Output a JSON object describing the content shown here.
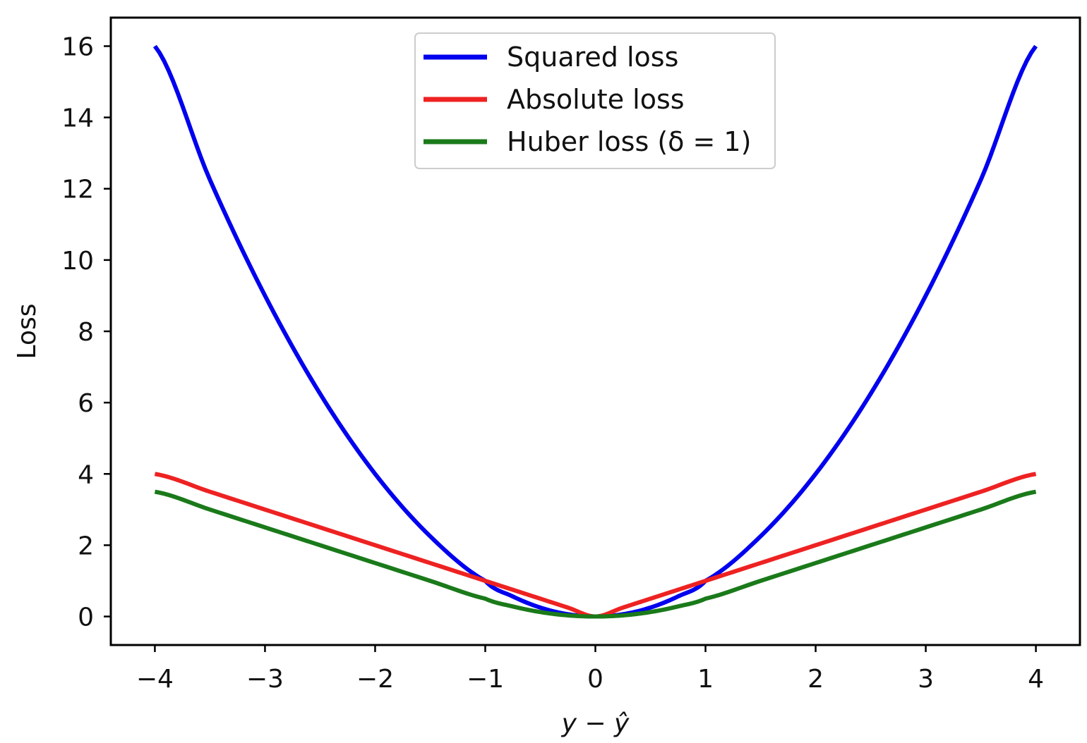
{
  "chart_data": {
    "type": "line",
    "xlabel": "y − ŷ",
    "ylabel": "Loss",
    "xlim": [
      -4.4,
      4.4
    ],
    "ylim": [
      -0.8,
      16.8
    ],
    "xticks": [
      -4,
      -3,
      -2,
      -1,
      0,
      1,
      2,
      3,
      4
    ],
    "xtick_labels": [
      "−4",
      "−3",
      "−2",
      "−1",
      "0",
      "1",
      "2",
      "3",
      "4"
    ],
    "yticks": [
      0,
      2,
      4,
      6,
      8,
      10,
      12,
      14,
      16
    ],
    "ytick_labels": [
      "0",
      "2",
      "4",
      "6",
      "8",
      "10",
      "12",
      "14",
      "16"
    ],
    "grid": false,
    "legend_position": "top-center",
    "x": [
      -4,
      -3.5,
      -3,
      -2.5,
      -2,
      -1.5,
      -1,
      -0.75,
      -0.5,
      -0.25,
      0,
      0.25,
      0.5,
      0.75,
      1,
      1.5,
      2,
      2.5,
      3,
      3.5,
      4
    ],
    "series": [
      {
        "name": "Squared loss",
        "color": "#0000ee",
        "values": [
          16,
          12.25,
          9,
          6.25,
          4,
          2.25,
          1,
          0.5625,
          0.25,
          0.0625,
          0,
          0.0625,
          0.25,
          0.5625,
          1,
          2.25,
          4,
          6.25,
          9,
          12.25,
          16
        ]
      },
      {
        "name": "Absolute loss",
        "color": "#ee2222",
        "values": [
          4,
          3.5,
          3,
          2.5,
          2,
          1.5,
          1,
          0.75,
          0.5,
          0.25,
          0,
          0.25,
          0.5,
          0.75,
          1,
          1.5,
          2,
          2.5,
          3,
          3.5,
          4
        ]
      },
      {
        "name": "Huber loss (δ = 1)",
        "color": "#1a7a1a",
        "values": [
          3.5,
          3,
          2.5,
          2,
          1.5,
          1,
          0.5,
          0.28125,
          0.125,
          0.03125,
          0,
          0.03125,
          0.125,
          0.28125,
          0.5,
          1,
          1.5,
          2,
          2.5,
          3,
          3.5
        ]
      }
    ]
  }
}
